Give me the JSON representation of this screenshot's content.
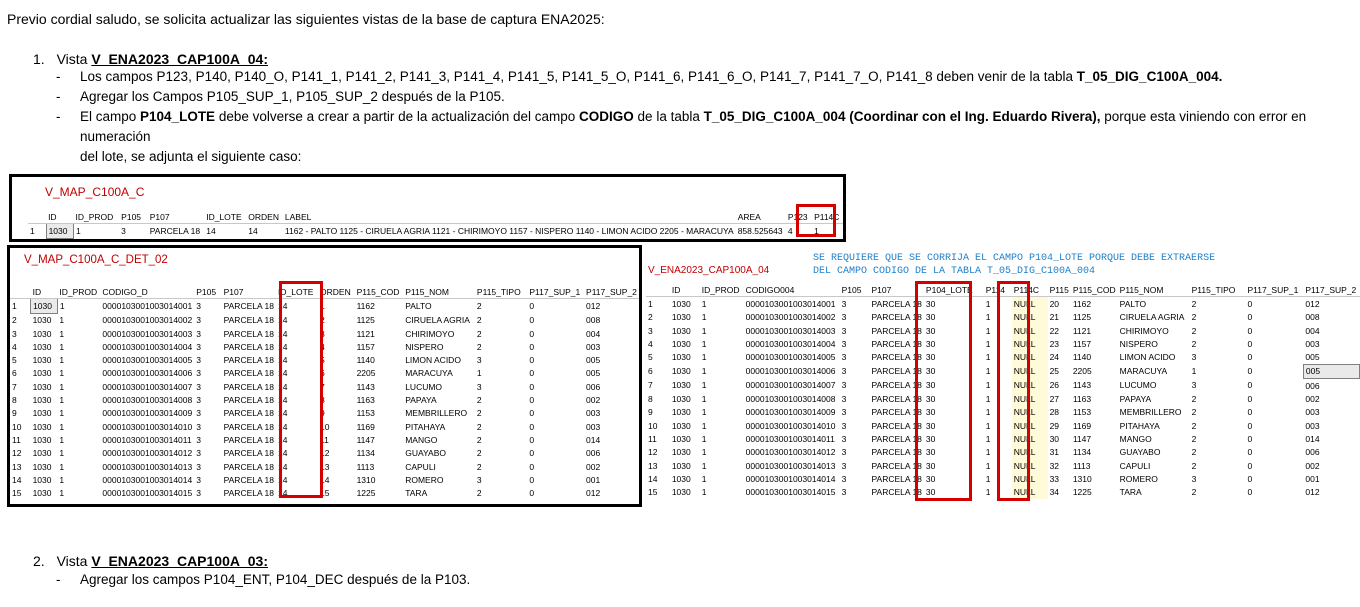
{
  "intro": "Previo cordial saludo, se solicita actualizar las siguientes vistas de la base de captura ENA2025:",
  "item1": {
    "num": "1.",
    "prefix": "Vista ",
    "view": "V_ENA2023_CAP100A_04:",
    "b1": {
      "text": "Los campos P123, P140, P140_O, P141_1, P141_2, P141_3, P141_4, P141_5, P141_5_O, P141_6, P141_6_O, P141_7, P141_7_O, P141_8 deben venir de la tabla ",
      "bold": "T_05_DIG_C100A_004."
    },
    "b2": {
      "text": "Agregar los Campos P105_SUP_1, P105_SUP_2 después de la P105."
    },
    "b3": {
      "t1": "El campo ",
      "b1": "P104_LOTE",
      "t2": " debe volverse a crear a partir de la actualización del campo ",
      "b2": "CODIGO",
      "t3": " de la tabla ",
      "b3": "T_05_DIG_C100A_004 (Coordinar con el Ing. Eduardo Rivera),",
      "t4": " porque esta viniendo con error en numeración",
      "t5": "del lote, se adjunta el siguiente caso:"
    }
  },
  "item2": {
    "num": "2.",
    "prefix": "Vista ",
    "view": "V_ENA2023_CAP100A_03:",
    "b1": {
      "text": "Agregar los campos P104_ENT, P104_DEC después de la P103."
    }
  },
  "map": {
    "title": "V_MAP_C100A_C",
    "columns": [
      "",
      "ID",
      "ID_PROD",
      "P105",
      "P107",
      "ID_LOTE",
      "ORDEN",
      "LABEL",
      "AREA",
      "P123",
      "P114C"
    ],
    "row": [
      "1",
      "1030",
      "1",
      "3",
      "PARCELA 18",
      "14",
      "14",
      "1162 - PALTO 1125 - CIRUELA AGRIA 1121 - CHIRIMOYO 1157 - NISPERO 1140 - LIMON ACIDO 2205 - MARACUYA",
      "858.525643",
      "4",
      "1"
    ]
  },
  "det": {
    "title": "V_MAP_C100A_C_DET_02",
    "columns": [
      "",
      "ID",
      "ID_PROD",
      "CODIGO_D",
      "P105",
      "P107",
      "ID_LOTE",
      "ORDEN",
      "P115_COD",
      "P115_NOM",
      "P115_TIPO",
      "P117_SUP_1",
      "P117_SUP_2"
    ],
    "rows": [
      [
        "1",
        "1030",
        "1",
        "0000103001003014001",
        "3",
        "PARCELA 18",
        "14",
        "1",
        "1162",
        "PALTO",
        "2",
        "0",
        "012"
      ],
      [
        "2",
        "1030",
        "1",
        "0000103001003014002",
        "3",
        "PARCELA 18",
        "14",
        "2",
        "1125",
        "CIRUELA AGRIA",
        "2",
        "0",
        "008"
      ],
      [
        "3",
        "1030",
        "1",
        "0000103001003014003",
        "3",
        "PARCELA 18",
        "14",
        "3",
        "1121",
        "CHIRIMOYO",
        "2",
        "0",
        "004"
      ],
      [
        "4",
        "1030",
        "1",
        "0000103001003014004",
        "3",
        "PARCELA 18",
        "14",
        "4",
        "1157",
        "NISPERO",
        "2",
        "0",
        "003"
      ],
      [
        "5",
        "1030",
        "1",
        "0000103001003014005",
        "3",
        "PARCELA 18",
        "14",
        "5",
        "1140",
        "LIMON ACIDO",
        "3",
        "0",
        "005"
      ],
      [
        "6",
        "1030",
        "1",
        "0000103001003014006",
        "3",
        "PARCELA 18",
        "14",
        "6",
        "2205",
        "MARACUYA",
        "1",
        "0",
        "005"
      ],
      [
        "7",
        "1030",
        "1",
        "0000103001003014007",
        "3",
        "PARCELA 18",
        "14",
        "7",
        "1143",
        "LUCUMO",
        "3",
        "0",
        "006"
      ],
      [
        "8",
        "1030",
        "1",
        "0000103001003014008",
        "3",
        "PARCELA 18",
        "14",
        "8",
        "1163",
        "PAPAYA",
        "2",
        "0",
        "002"
      ],
      [
        "9",
        "1030",
        "1",
        "0000103001003014009",
        "3",
        "PARCELA 18",
        "14",
        "9",
        "1153",
        "MEMBRILLERO",
        "2",
        "0",
        "003"
      ],
      [
        "10",
        "1030",
        "1",
        "0000103001003014010",
        "3",
        "PARCELA 18",
        "14",
        "10",
        "1169",
        "PITAHAYA",
        "2",
        "0",
        "003"
      ],
      [
        "11",
        "1030",
        "1",
        "0000103001003014011",
        "3",
        "PARCELA 18",
        "14",
        "11",
        "1147",
        "MANGO",
        "2",
        "0",
        "014"
      ],
      [
        "12",
        "1030",
        "1",
        "0000103001003014012",
        "3",
        "PARCELA 18",
        "14",
        "12",
        "1134",
        "GUAYABO",
        "2",
        "0",
        "006"
      ],
      [
        "13",
        "1030",
        "1",
        "0000103001003014013",
        "3",
        "PARCELA 18",
        "14",
        "13",
        "1113",
        "CAPULI",
        "2",
        "0",
        "002"
      ],
      [
        "14",
        "1030",
        "1",
        "0000103001003014014",
        "3",
        "PARCELA 18",
        "14",
        "14",
        "1310",
        "ROMERO",
        "3",
        "0",
        "001"
      ],
      [
        "15",
        "1030",
        "1",
        "0000103001003014015",
        "3",
        "PARCELA 18",
        "14",
        "15",
        "1225",
        "TARA",
        "2",
        "0",
        "012"
      ]
    ]
  },
  "cap": {
    "title": "V_ENA2023_CAP100A_04",
    "note1": "SE REQUIERE QUE SE CORRIJA EL CAMPO P104_LOTE PORQUE DEBE EXTRAERSE",
    "note2": "DEL CAMPO CODIGO DE LA TABLA  T_05_DIG_C100A_004",
    "columns": [
      "",
      "ID",
      "ID_PROD",
      "CODIGO004",
      "P105",
      "P107",
      "P104_LOTE",
      "P114",
      "P114C",
      "P115",
      "P115_COD",
      "P115_NOM",
      "P115_TIPO",
      "P117_SUP_1",
      "P117_SUP_2"
    ],
    "rows": [
      [
        "1",
        "1030",
        "1",
        "0000103001003014001",
        "3",
        "PARCELA 18",
        "30",
        "1",
        "NULL",
        "20",
        "1162",
        "PALTO",
        "2",
        "0",
        "012"
      ],
      [
        "2",
        "1030",
        "1",
        "0000103001003014002",
        "3",
        "PARCELA 18",
        "30",
        "1",
        "NULL",
        "21",
        "1125",
        "CIRUELA AGRIA",
        "2",
        "0",
        "008"
      ],
      [
        "3",
        "1030",
        "1",
        "0000103001003014003",
        "3",
        "PARCELA 18",
        "30",
        "1",
        "NULL",
        "22",
        "1121",
        "CHIRIMOYO",
        "2",
        "0",
        "004"
      ],
      [
        "4",
        "1030",
        "1",
        "0000103001003014004",
        "3",
        "PARCELA 18",
        "30",
        "1",
        "NULL",
        "23",
        "1157",
        "NISPERO",
        "2",
        "0",
        "003"
      ],
      [
        "5",
        "1030",
        "1",
        "0000103001003014005",
        "3",
        "PARCELA 18",
        "30",
        "1",
        "NULL",
        "24",
        "1140",
        "LIMON ACIDO",
        "3",
        "0",
        "005"
      ],
      [
        "6",
        "1030",
        "1",
        "0000103001003014006",
        "3",
        "PARCELA 18",
        "30",
        "1",
        "NULL",
        "25",
        "2205",
        "MARACUYA",
        "1",
        "0",
        "005"
      ],
      [
        "7",
        "1030",
        "1",
        "0000103001003014007",
        "3",
        "PARCELA 18",
        "30",
        "1",
        "NULL",
        "26",
        "1143",
        "LUCUMO",
        "3",
        "0",
        "006"
      ],
      [
        "8",
        "1030",
        "1",
        "0000103001003014008",
        "3",
        "PARCELA 18",
        "30",
        "1",
        "NULL",
        "27",
        "1163",
        "PAPAYA",
        "2",
        "0",
        "002"
      ],
      [
        "9",
        "1030",
        "1",
        "0000103001003014009",
        "3",
        "PARCELA 18",
        "30",
        "1",
        "NULL",
        "28",
        "1153",
        "MEMBRILLERO",
        "2",
        "0",
        "003"
      ],
      [
        "10",
        "1030",
        "1",
        "0000103001003014010",
        "3",
        "PARCELA 18",
        "30",
        "1",
        "NULL",
        "29",
        "1169",
        "PITAHAYA",
        "2",
        "0",
        "003"
      ],
      [
        "11",
        "1030",
        "1",
        "0000103001003014011",
        "3",
        "PARCELA 18",
        "30",
        "1",
        "NULL",
        "30",
        "1147",
        "MANGO",
        "2",
        "0",
        "014"
      ],
      [
        "12",
        "1030",
        "1",
        "0000103001003014012",
        "3",
        "PARCELA 18",
        "30",
        "1",
        "NULL",
        "31",
        "1134",
        "GUAYABO",
        "2",
        "0",
        "006"
      ],
      [
        "13",
        "1030",
        "1",
        "0000103001003014013",
        "3",
        "PARCELA 18",
        "30",
        "1",
        "NULL",
        "32",
        "1113",
        "CAPULI",
        "2",
        "0",
        "002"
      ],
      [
        "14",
        "1030",
        "1",
        "0000103001003014014",
        "3",
        "PARCELA 18",
        "30",
        "1",
        "NULL",
        "33",
        "1310",
        "ROMERO",
        "3",
        "0",
        "001"
      ],
      [
        "15",
        "1030",
        "1",
        "0000103001003014015",
        "3",
        "PARCELA 18",
        "30",
        "1",
        "NULL",
        "34",
        "1225",
        "TARA",
        "2",
        "0",
        "012"
      ]
    ]
  }
}
